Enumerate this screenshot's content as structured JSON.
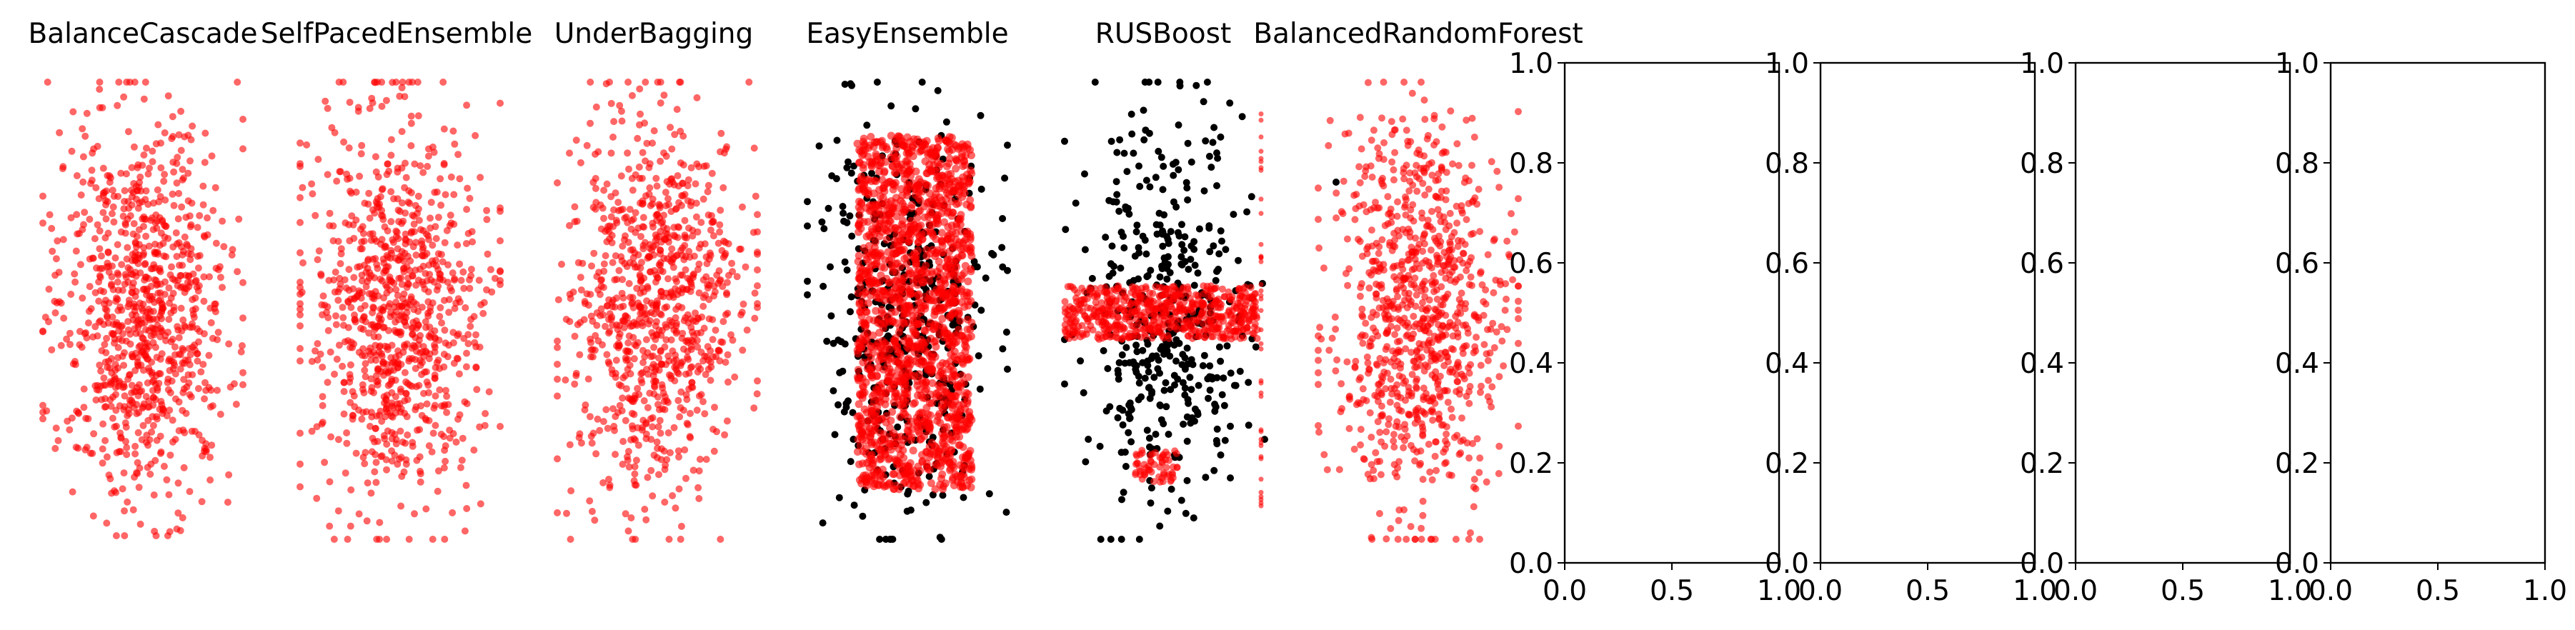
{
  "chart_data": [
    {
      "type": "scatter",
      "title": "BalanceCascade",
      "axis": "off",
      "colors": {
        "minority": "#ff0000",
        "majority": "#000000"
      }
    },
    {
      "type": "scatter",
      "title": "SelfPacedEnsemble",
      "axis": "off",
      "colors": {
        "minority": "#ff0000",
        "majority": "#000000"
      }
    },
    {
      "type": "scatter",
      "title": "UnderBagging",
      "axis": "off",
      "colors": {
        "minority": "#ff0000",
        "majority": "#000000"
      }
    },
    {
      "type": "scatter",
      "title": "EasyEnsemble",
      "axis": "off",
      "colors": {
        "minority": "#ff0000",
        "majority": "#000000"
      }
    },
    {
      "type": "scatter",
      "title": "RUSBoost",
      "axis": "off",
      "colors": {
        "minority": "#ff0000",
        "majority": "#000000"
      }
    },
    {
      "type": "scatter",
      "title": "BalancedRandomForest",
      "axis": "off",
      "colors": {
        "minority": "#ff0000",
        "majority": "#000000"
      }
    },
    {
      "type": "scatter",
      "title": "",
      "axis": "on",
      "xlim": [
        0.0,
        1.0
      ],
      "ylim": [
        0.0,
        1.0
      ],
      "xticks": [
        "0.0",
        "0.5",
        "1.0"
      ],
      "yticks": [
        "0.0",
        "0.2",
        "0.4",
        "0.6",
        "0.8",
        "1.0"
      ],
      "series": []
    },
    {
      "type": "scatter",
      "title": "",
      "axis": "on",
      "xlim": [
        0.0,
        1.0
      ],
      "ylim": [
        0.0,
        1.0
      ],
      "xticks": [
        "0.0",
        "0.5",
        "1.0"
      ],
      "yticks": [
        "0.0",
        "0.2",
        "0.4",
        "0.6",
        "0.8",
        "1.0"
      ],
      "series": []
    },
    {
      "type": "scatter",
      "title": "",
      "axis": "on",
      "xlim": [
        0.0,
        1.0
      ],
      "ylim": [
        0.0,
        1.0
      ],
      "xticks": [
        "0.0",
        "0.5",
        "1.0"
      ],
      "yticks": [
        "0.0",
        "0.2",
        "0.4",
        "0.6",
        "0.8",
        "1.0"
      ],
      "series": []
    },
    {
      "type": "scatter",
      "title": "",
      "axis": "on",
      "xlim": [
        0.0,
        1.0
      ],
      "ylim": [
        0.0,
        1.0
      ],
      "xticks": [
        "0.0",
        "0.5",
        "1.0"
      ],
      "yticks": [
        "0.0",
        "0.2",
        "0.4",
        "0.6",
        "0.8",
        "1.0"
      ],
      "series": []
    }
  ]
}
